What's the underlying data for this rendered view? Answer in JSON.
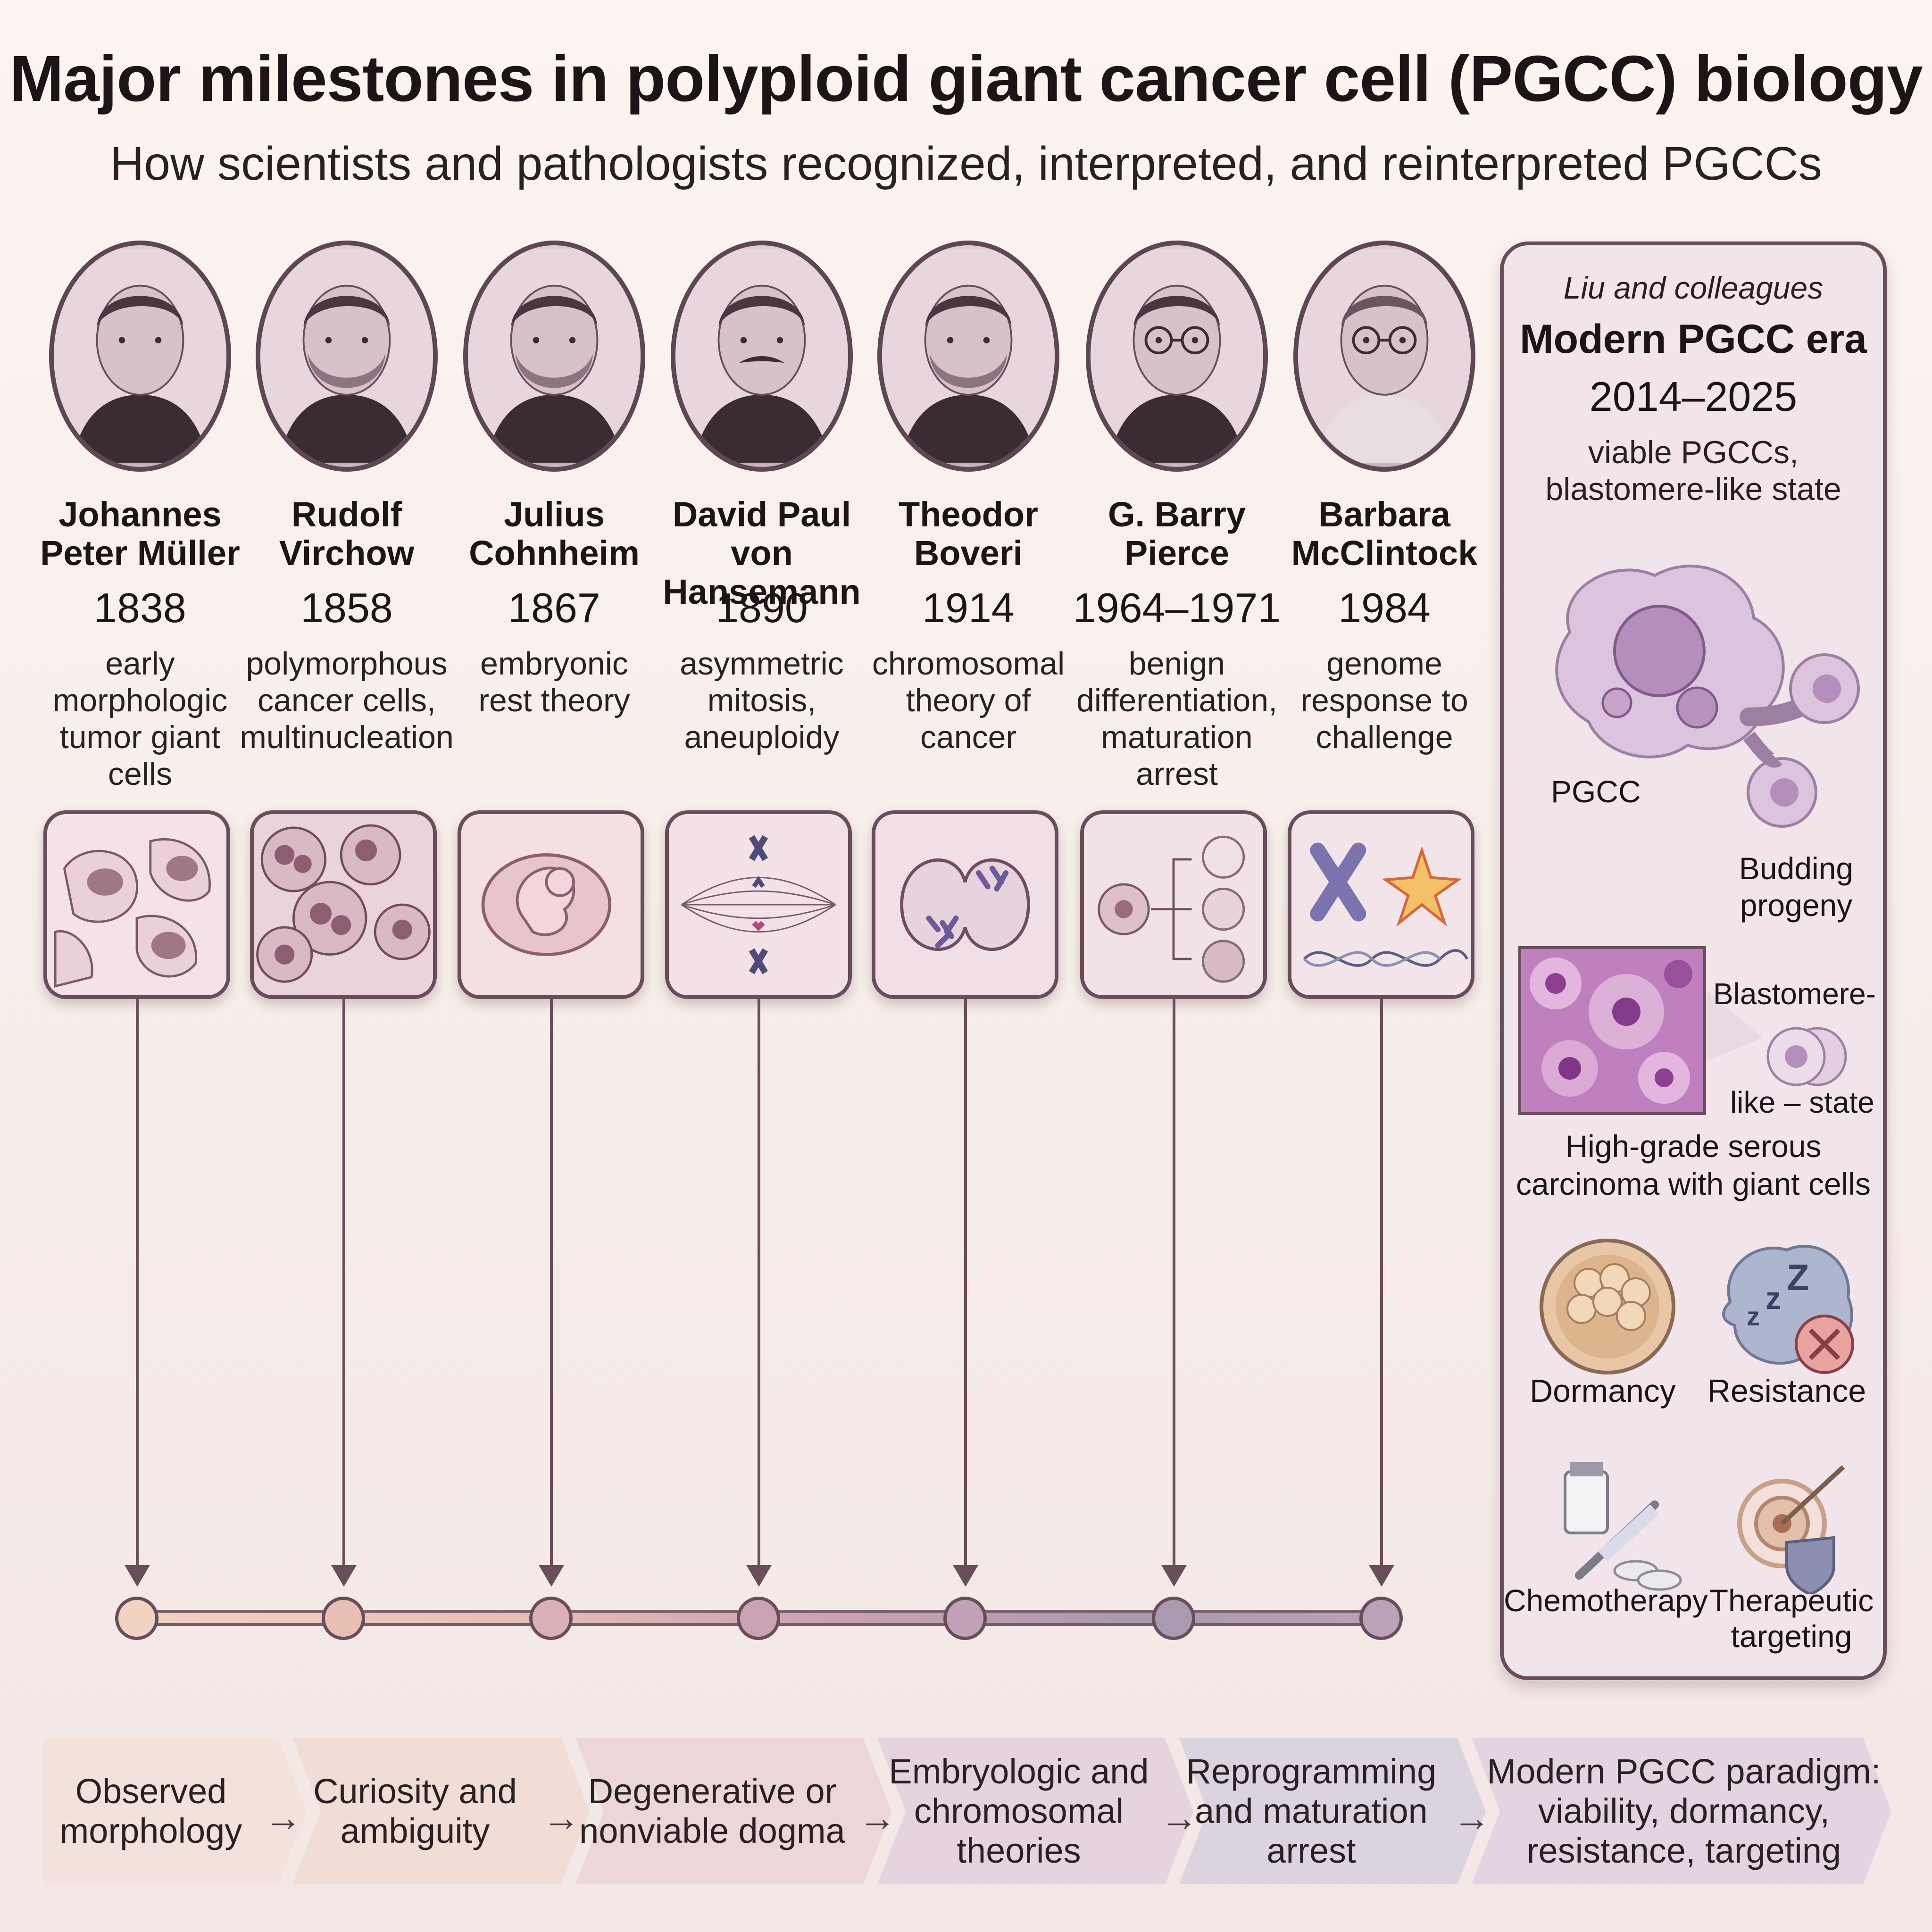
{
  "title": "Major milestones in polyploid giant cancer cell (PGCC) biology",
  "subtitle": "How scientists and pathologists recognized, interpreted, and reinterpreted PGCCs",
  "milestones": [
    {
      "name_line1": "Johannes",
      "name_line2": "Peter Müller",
      "year": "1838",
      "desc": [
        "early",
        "morphologic",
        "tumor giant",
        "cells"
      ],
      "tile_icon": "tumor-giant-cells-histology-icon"
    },
    {
      "name_line1": "Rudolf",
      "name_line2": "Virchow",
      "year": "1858",
      "desc": [
        "polymorphous",
        "cancer cells,",
        "multinucleation"
      ],
      "tile_icon": "multinucleated-cells-icon"
    },
    {
      "name_line1": "Julius",
      "name_line2": "Cohnheim",
      "year": "1867",
      "desc": [
        "embryonic",
        "rest theory"
      ],
      "tile_icon": "embryo-icon"
    },
    {
      "name_line1": "David Paul",
      "name_line2": "von Hansemann",
      "year": "1890",
      "desc": [
        "asymmetric",
        "mitosis,",
        "aneuploidy"
      ],
      "tile_icon": "mitotic-spindle-icon"
    },
    {
      "name_line1": "Theodor",
      "name_line2": "Boveri",
      "year": "1914",
      "desc": [
        "chromosomal",
        "theory of",
        "cancer"
      ],
      "tile_icon": "dividing-cell-chromosomes-icon"
    },
    {
      "name_line1": "G. Barry",
      "name_line2": "Pierce",
      "year": "1964–1971",
      "desc": [
        "benign",
        "differentiation,",
        "maturation",
        "arrest"
      ],
      "tile_icon": "cell-differentiation-branch-icon"
    },
    {
      "name_line1": "Barbara",
      "name_line2": "McClintock",
      "year": "1984",
      "desc": [
        "genome",
        "response to",
        "challenge"
      ],
      "tile_icon": "chromosome-dna-stress-icon"
    }
  ],
  "node_colors": [
    "#f1d3c1",
    "#e8c0b3",
    "#d9b0b5",
    "#c9a3b3",
    "#bfa2b6",
    "#a99aaf",
    "#bba2b8"
  ],
  "modern_panel": {
    "authors": "Liu and colleagues",
    "heading": "Modern PGCC era",
    "years": "2014–2025",
    "summary": [
      "viable PGCCs,",
      "blastomere-like state"
    ],
    "pgcc_label": "PGCC",
    "budding_label": [
      "Budding",
      "progeny"
    ],
    "blastomere_label_top": "Blastomere-",
    "blastomere_label_bottom": "like – state",
    "histology_caption": [
      "High-grade serous",
      "carcinoma with giant cells"
    ],
    "dormancy_label": "Dormancy",
    "resistance_label": "Resistance",
    "chemo_label": "Chemotherapy",
    "targeting_label": [
      "Therapeutic",
      "targeting"
    ]
  },
  "paradigm_flow": [
    [
      "Observed",
      "morphology"
    ],
    [
      "Curiosity and",
      "ambiguity"
    ],
    [
      "Degenerative or",
      "nonviable dogma"
    ],
    [
      "Embryologic and",
      "chromosomal",
      "theories"
    ],
    [
      "Reprogramming",
      "and maturation",
      "arrest"
    ],
    [
      "Modern PGCC paradigm:",
      "viability, dormancy,",
      "resistance, targeting"
    ]
  ],
  "flow_arrow": "→",
  "flow_colors": [
    "#f3e1db",
    "#f1dcd6",
    "#ecd6d9",
    "#e5d4df",
    "#dcd3e0",
    "#e3d4e2"
  ]
}
